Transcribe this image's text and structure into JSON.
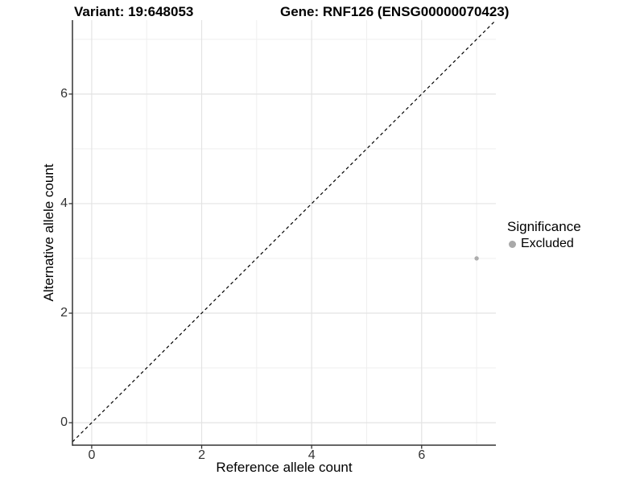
{
  "chart_data": {
    "type": "scatter",
    "title_left": "Variant: 19:648053",
    "title_right": "Gene: RNF126 (ENSG00000070423)",
    "xlabel": "Reference allele count",
    "ylabel": "Alternative allele count",
    "xlim": [
      -0.35,
      7.35
    ],
    "ylim": [
      -0.41,
      7.35
    ],
    "x_major_ticks": [
      0,
      2,
      4,
      6
    ],
    "y_major_ticks": [
      0,
      2,
      4,
      6
    ],
    "x_minor_gridlines": [
      1,
      3,
      5,
      7
    ],
    "y_minor_gridlines": [
      1,
      3,
      5,
      7
    ],
    "grid": "on",
    "identity_line": {
      "equation": "y = x",
      "style": "dashed",
      "color": "#000000"
    },
    "series": [
      {
        "name": "Excluded",
        "color": "#adadad",
        "marker": "circle",
        "points": [
          {
            "x": 7,
            "y": 3
          }
        ]
      }
    ],
    "legend": {
      "title": "Significance",
      "position": "right",
      "items": [
        {
          "label": "Excluded",
          "color": "#a9a9a9"
        }
      ]
    }
  },
  "colors": {
    "background": "#ffffff",
    "grid_major": "#e3e3e3",
    "grid_minor": "#efefef",
    "axis_line": "#333333",
    "tick_mark": "#333333",
    "tick_text": "#333333",
    "title_text": "#000000"
  }
}
